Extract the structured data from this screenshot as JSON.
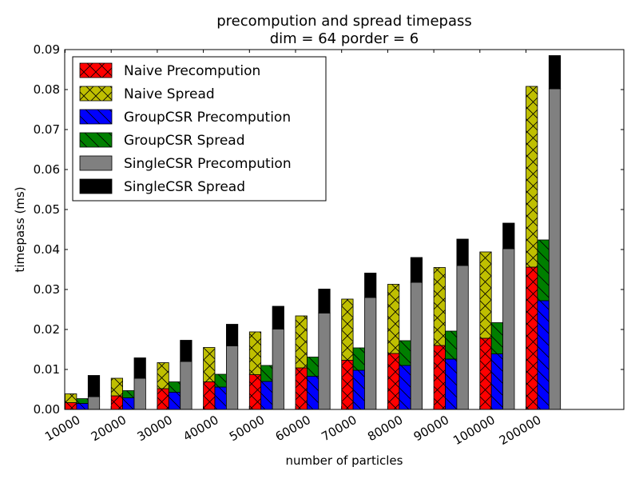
{
  "chart_data": {
    "type": "bar",
    "stacked": true,
    "title": "precompution and spread timepass",
    "subtitle": "dim = 64 porder = 6",
    "xlabel": "number of particles",
    "ylabel": "timepass (ms)",
    "ylim": [
      0,
      0.09
    ],
    "yticks": [
      "0.00",
      "0.01",
      "0.02",
      "0.03",
      "0.04",
      "0.05",
      "0.06",
      "0.07",
      "0.08",
      "0.09"
    ],
    "categories": [
      "10000",
      "20000",
      "30000",
      "40000",
      "50000",
      "60000",
      "70000",
      "80000",
      "90000",
      "100000",
      "200000"
    ],
    "legend_position": "top-left",
    "groups": [
      {
        "name": "Naive",
        "components": [
          {
            "name": "Naive Precompution",
            "color": "#ff0000",
            "hatch": "cross",
            "values": [
              0.0017,
              0.0034,
              0.0052,
              0.0069,
              0.0087,
              0.0104,
              0.0123,
              0.014,
              0.016,
              0.0178,
              0.0356
            ]
          },
          {
            "name": "Naive Spread",
            "color": "#bfbf00",
            "hatch": "cross",
            "values": [
              0.0022,
              0.0044,
              0.0065,
              0.0086,
              0.0107,
              0.013,
              0.0153,
              0.0173,
              0.0195,
              0.0216,
              0.0452
            ]
          }
        ]
      },
      {
        "name": "GroupCSR",
        "components": [
          {
            "name": "GroupCSR Precompution",
            "color": "#0000ff",
            "hatch": "diag",
            "values": [
              0.0015,
              0.0029,
              0.0043,
              0.0056,
              0.007,
              0.0083,
              0.0098,
              0.011,
              0.0126,
              0.0139,
              0.0272
            ]
          },
          {
            "name": "GroupCSR Spread",
            "color": "#007f00",
            "hatch": "diag",
            "values": [
              0.0012,
              0.0018,
              0.0026,
              0.0032,
              0.004,
              0.0048,
              0.0056,
              0.0062,
              0.007,
              0.0078,
              0.0152
            ]
          }
        ]
      },
      {
        "name": "SingleCSR",
        "components": [
          {
            "name": "SingleCSR Precompution",
            "color": "#808080",
            "hatch": "none",
            "values": [
              0.0032,
              0.0078,
              0.012,
              0.0159,
              0.0201,
              0.0241,
              0.028,
              0.0318,
              0.036,
              0.0402,
              0.0802
            ]
          },
          {
            "name": "SingleCSR Spread",
            "color": "#000000",
            "hatch": "none",
            "values": [
              0.0053,
              0.0051,
              0.0053,
              0.0054,
              0.0057,
              0.006,
              0.0061,
              0.0062,
              0.0066,
              0.0064,
              0.0083
            ]
          }
        ]
      }
    ]
  }
}
